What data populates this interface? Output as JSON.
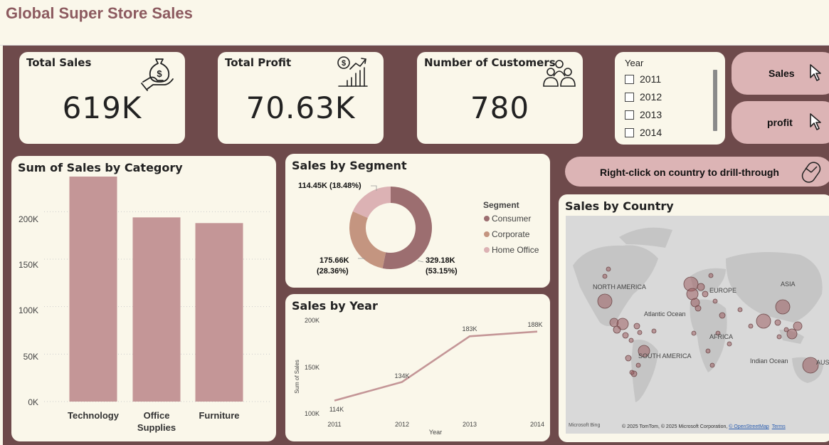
{
  "page_title": "Global Super Store Sales",
  "kpis": {
    "sales": {
      "title": "Total Sales",
      "value": "619K",
      "icon": "money-hand-icon"
    },
    "profit": {
      "title": "Total Profit",
      "value": "70.63K",
      "icon": "growth-chart-icon"
    },
    "customers": {
      "title": "Number of Customers",
      "value": "780",
      "icon": "people-icon"
    }
  },
  "year_slicer": {
    "title": "Year",
    "options": [
      "2011",
      "2012",
      "2013",
      "2014"
    ]
  },
  "nav_buttons": {
    "sales": "Sales",
    "profit": "profit",
    "drill_through": "Right-click on country to drill-through"
  },
  "category_chart": {
    "title": "Sum of Sales by Category",
    "y_ticks": [
      "200K",
      "150K",
      "100K",
      "50K",
      "0K"
    ],
    "x_labels": [
      [
        "Technology"
      ],
      [
        "Office",
        "Supplies"
      ],
      [
        "Furniture"
      ]
    ]
  },
  "segment_chart": {
    "title": "Sales by Segment",
    "legend_title": "Segment",
    "legend": [
      "Consumer",
      "Corporate",
      "Home Office"
    ],
    "labels": {
      "home_office": "114.45K (18.48%)",
      "corporate_1": "175.66K",
      "corporate_2": "(28.36%)",
      "consumer_1": "329.18K",
      "consumer_2": "(53.15%)"
    }
  },
  "year_chart": {
    "title": "Sales by Year",
    "y_ticks": [
      "200K",
      "150K",
      "100K"
    ],
    "x_ticks": [
      "2011",
      "2012",
      "2013",
      "2014"
    ],
    "point_labels": [
      "114K",
      "134K",
      "183K",
      "188K"
    ],
    "xlabel": "Year",
    "ylabel": "Sum of Sales"
  },
  "map": {
    "title": "Sales by Country",
    "labels": {
      "north_america": "NORTH AMERICA",
      "europe": "EUROPE",
      "asia": "ASIA",
      "atlantic": "Atlantic Ocean",
      "africa": "AFRICA",
      "south_america": "SOUTH AMERICA",
      "indian": "Indian Ocean",
      "aus": "AUS"
    },
    "brand": "Microsoft Bing",
    "copyright": "© 2025 TomTom, © 2025 Microsoft Corporation,",
    "osm_link": "© OpenStreetMap",
    "terms_link": "Terms"
  },
  "colors": {
    "canvas": "#6e4a4b",
    "card": "#faf7ea",
    "bar": "#c49697",
    "consumer": "#9c6e70",
    "corporate": "#c49580",
    "home_office": "#dcb2b4",
    "line": "#c49697",
    "pill": "#dcb4b5",
    "title": "#8c5a5f"
  },
  "chart_data": [
    {
      "type": "bar",
      "title": "Sum of Sales by Category",
      "categories": [
        "Technology",
        "Office Supplies",
        "Furniture"
      ],
      "values": [
        237000,
        194000,
        188000
      ],
      "ylim": [
        0,
        240000
      ],
      "y_ticks": [
        0,
        50000,
        100000,
        150000,
        200000
      ]
    },
    {
      "type": "pie",
      "title": "Sales by Segment",
      "categories": [
        "Consumer",
        "Corporate",
        "Home Office"
      ],
      "values": [
        329180,
        175660,
        114450
      ],
      "percent": [
        53.15,
        28.36,
        18.48
      ]
    },
    {
      "type": "line",
      "title": "Sales by Year",
      "x": [
        2011,
        2012,
        2013,
        2014
      ],
      "values": [
        114000,
        134000,
        183000,
        188000
      ],
      "xlabel": "Year",
      "ylabel": "Sum of Sales",
      "ylim": [
        100000,
        200000
      ]
    }
  ]
}
